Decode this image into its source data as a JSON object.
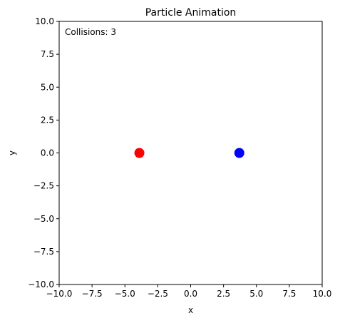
{
  "chart_data": {
    "type": "scatter",
    "title": "Particle Animation",
    "xlabel": "x",
    "ylabel": "y",
    "xlim": [
      -10,
      10
    ],
    "ylim": [
      -10,
      10
    ],
    "xticks": [
      -10.0,
      -7.5,
      -5.0,
      -2.5,
      0.0,
      2.5,
      5.0,
      7.5,
      10.0
    ],
    "yticks": [
      -10.0,
      -7.5,
      -5.0,
      -2.5,
      0.0,
      2.5,
      5.0,
      7.5,
      10.0
    ],
    "xtick_labels": [
      "−10.0",
      "−7.5",
      "−5.0",
      "−2.5",
      "0.0",
      "2.5",
      "5.0",
      "7.5",
      "10.0"
    ],
    "ytick_labels": [
      "−10.0",
      "−7.5",
      "−5.0",
      "−2.5",
      "0.0",
      "2.5",
      "5.0",
      "7.5",
      "10.0"
    ],
    "grid": false,
    "points": [
      {
        "x": -3.9,
        "y": 0.0,
        "color": "#ff0000"
      },
      {
        "x": 3.7,
        "y": 0.0,
        "color": "#0000ff"
      }
    ],
    "annotation": "Collisions: 3"
  }
}
